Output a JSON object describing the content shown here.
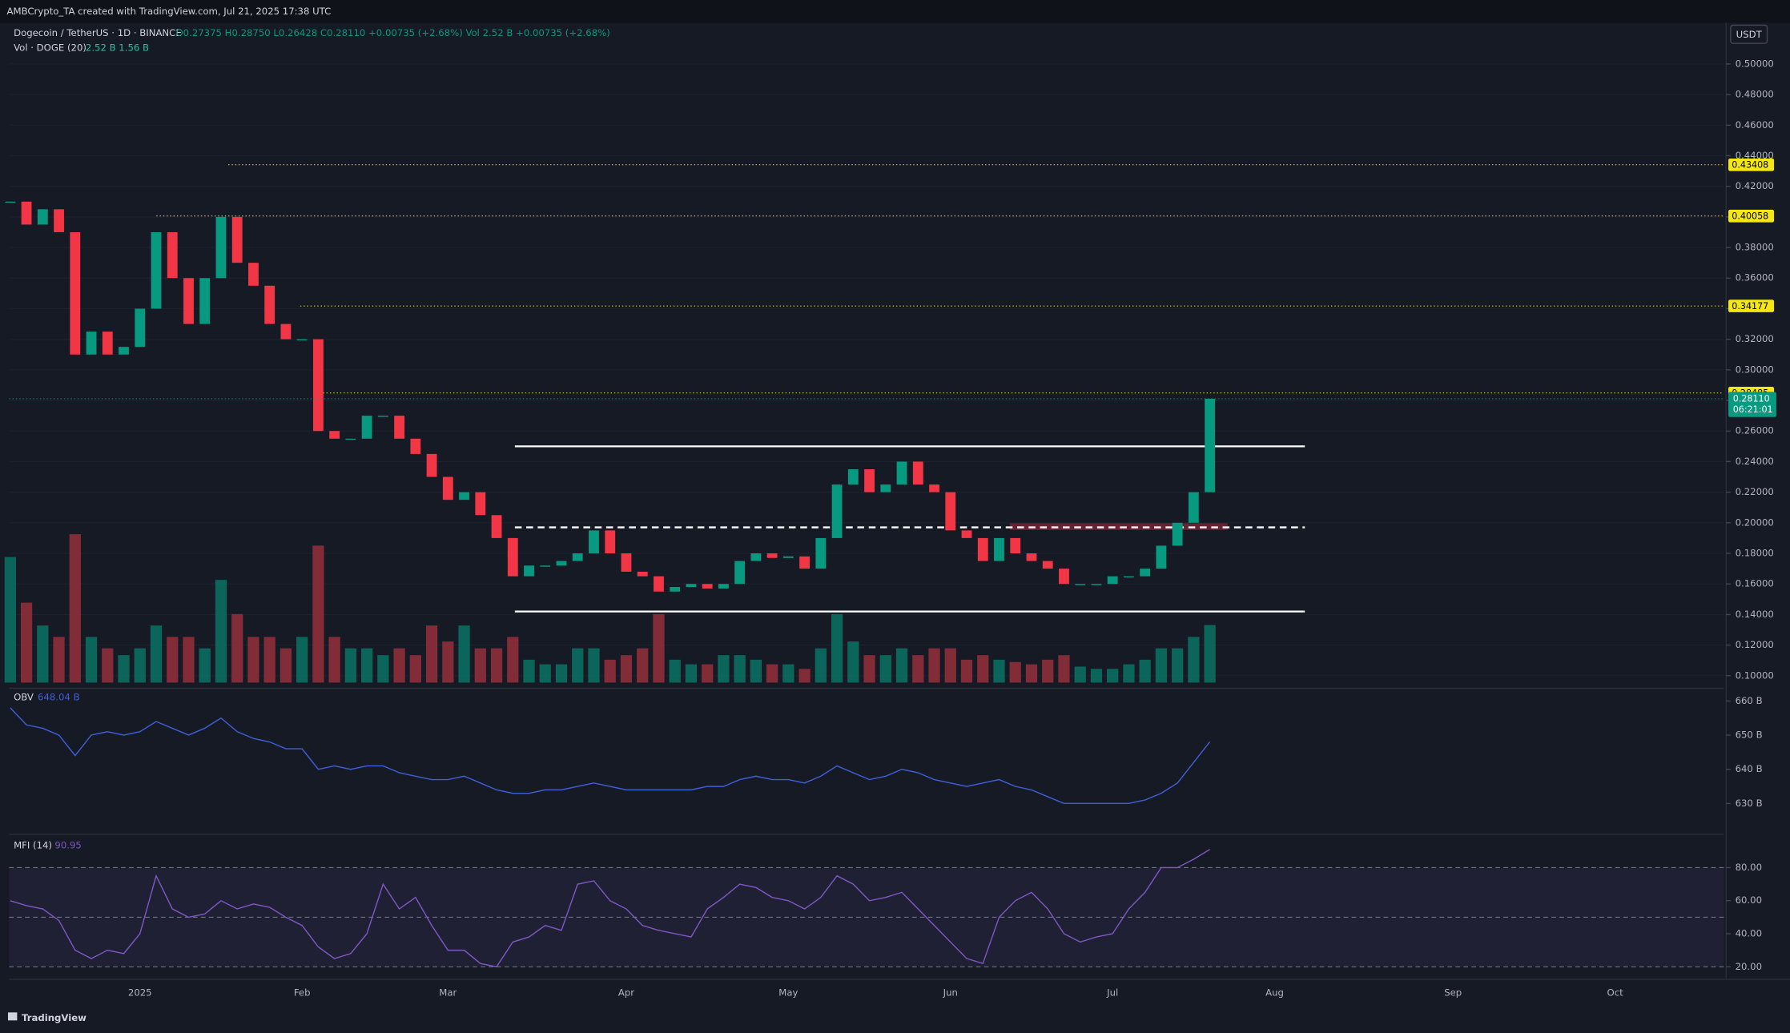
{
  "header": {
    "credit": "AMBCrypto_TA created with TradingView.com, Jul 21, 2025 17:38 UTC",
    "ohlc": "O0.27375 H0.28750 L0.26428 C0.28110 +0.00735 (+2.68%) Vol 2.52 B +0.00735 (+2.68%)",
    "volume_values": "2.52 B  1.56 B",
    "currency": "USDT",
    "logo": "TradingView"
  },
  "chart_data": [
    {
      "type": "candlestick",
      "categories": [
        null,
        null,
        null,
        null,
        null,
        null,
        null,
        null,
        "2025",
        null,
        null,
        null,
        null,
        null,
        null,
        null,
        null,
        null,
        "Feb",
        null,
        null,
        null,
        null,
        null,
        null,
        null,
        null,
        "Mar",
        null,
        null,
        null,
        null,
        null,
        null,
        null,
        null,
        null,
        null,
        "Apr",
        null,
        null,
        null,
        null,
        null,
        null,
        null,
        null,
        null,
        "May",
        null,
        null,
        null,
        null,
        null,
        null,
        null,
        null,
        null,
        "Jun",
        null,
        null,
        null,
        null,
        null,
        null,
        null,
        null,
        null,
        "Jul",
        null,
        null,
        null,
        null,
        null,
        null,
        null,
        null,
        null,
        "Aug",
        null,
        null,
        null,
        null,
        null,
        null,
        null,
        null,
        null,
        null,
        "Sep",
        null,
        null,
        null,
        null,
        null,
        null,
        null,
        null,
        null,
        "Oct",
        null,
        null,
        null,
        null,
        null,
        null
      ],
      "series": [
        {
          "name": "Dogecoin / TetherUS · 1D · BINANCE",
          "up_color": "#089981",
          "down_color": "#f23645",
          "values": [
            0.41,
            0.395,
            0.405,
            0.39,
            0.31,
            0.325,
            0.31,
            0.315,
            0.34,
            0.39,
            0.36,
            0.33,
            0.36,
            0.4,
            0.37,
            0.355,
            0.33,
            0.32,
            0.32,
            0.26,
            0.255,
            0.255,
            0.27,
            0.27,
            0.255,
            0.245,
            0.23,
            0.215,
            0.22,
            0.205,
            0.19,
            0.165,
            0.172,
            0.172,
            0.175,
            0.18,
            0.195,
            0.18,
            0.168,
            0.165,
            0.155,
            0.158,
            0.16,
            0.157,
            0.16,
            0.175,
            0.18,
            0.177,
            0.178,
            0.17,
            0.19,
            0.225,
            0.235,
            0.22,
            0.225,
            0.24,
            0.225,
            0.22,
            0.195,
            0.19,
            0.175,
            0.19,
            0.18,
            0.175,
            0.17,
            0.16,
            0.16,
            0.16,
            0.165,
            0.165,
            0.17,
            0.185,
            0.2,
            0.22,
            0.2811,
            null,
            null,
            null,
            null,
            null,
            null,
            null,
            null,
            null,
            null,
            null,
            null,
            null,
            null,
            null,
            null,
            null,
            null,
            null,
            null,
            null,
            null,
            null,
            null,
            null,
            null,
            null,
            null,
            null,
            null,
            null
          ]
        },
        {
          "name": "Vol · DOGE (20)",
          "up_color": "#0b6e60",
          "down_color": "#8e2f3a",
          "values": [
            5.5,
            3.5,
            2.5,
            2,
            6.5,
            2,
            1.5,
            1.2,
            1.5,
            2.5,
            2,
            2,
            1.5,
            4.5,
            3,
            2,
            2,
            1.5,
            2,
            6,
            2,
            1.5,
            1.5,
            1.2,
            1.5,
            1.2,
            2.5,
            1.8,
            2.5,
            1.5,
            1.5,
            2,
            1,
            0.8,
            0.8,
            1.5,
            1.5,
            1,
            1.2,
            1.5,
            3,
            1,
            0.8,
            0.8,
            1.2,
            1.2,
            1,
            0.8,
            0.8,
            0.6,
            1.5,
            3,
            1.8,
            1.2,
            1.2,
            1.5,
            1.2,
            1.5,
            1.5,
            1,
            1.2,
            1,
            0.9,
            0.8,
            1,
            1.2,
            0.7,
            0.6,
            0.6,
            0.8,
            1,
            1.5,
            1.5,
            2,
            2.52,
            null,
            null,
            null,
            null,
            null,
            null,
            null,
            null,
            null,
            null,
            null,
            null,
            null,
            null,
            null,
            null,
            null,
            null,
            null,
            null,
            null,
            null,
            null,
            null,
            null,
            null,
            null,
            null,
            null,
            null,
            null
          ]
        }
      ],
      "ylim": [
        0.0955,
        0.5269
      ],
      "yticks": [
        {
          "value": 0.1,
          "label": "0.10000"
        },
        {
          "value": 0.12,
          "label": "0.12000"
        },
        {
          "value": 0.14,
          "label": "0.14000"
        },
        {
          "value": 0.16,
          "label": "0.16000"
        },
        {
          "value": 0.18,
          "label": "0.18000"
        },
        {
          "value": 0.2,
          "label": "0.20000"
        },
        {
          "value": 0.22,
          "label": "0.22000"
        },
        {
          "value": 0.24,
          "label": "0.24000"
        },
        {
          "value": 0.26,
          "label": "0.26000"
        },
        {
          "value": 0.28,
          "label": "0.28000"
        },
        {
          "value": 0.3,
          "label": "0.30000"
        },
        {
          "value": 0.32,
          "label": "0.32000"
        },
        {
          "value": 0.34,
          "label": "0.34000"
        },
        {
          "value": 0.36,
          "label": "0.36000"
        },
        {
          "value": 0.38,
          "label": "0.38000"
        },
        {
          "value": 0.4,
          "label": "0.40000"
        },
        {
          "value": 0.42,
          "label": "0.42000"
        },
        {
          "value": 0.44,
          "label": "0.44000"
        },
        {
          "value": 0.46,
          "label": "0.46000"
        },
        {
          "value": 0.48,
          "label": "0.48000"
        },
        {
          "value": 0.5,
          "label": "0.50000"
        }
      ],
      "grid": true,
      "levels": [
        {
          "value": 0.43408,
          "label": "0.43408"
        },
        {
          "value": 0.40058,
          "label": "0.40058"
        },
        {
          "value": 0.34177,
          "label": "0.34177"
        },
        {
          "value": 0.28485,
          "label": "0.28485"
        }
      ],
      "level_color": "#f5e616",
      "range_lines": [
        {
          "value": 0.25,
          "style": "solid"
        },
        {
          "value": 0.197,
          "style": "dashed"
        },
        {
          "value": 0.142,
          "style": "solid"
        }
      ],
      "zone": [
        0.1955,
        0.1995
      ],
      "last_price": {
        "value": 0.2811,
        "label": "0.28110"
      },
      "countdown": "06:21:01"
    },
    {
      "type": "line",
      "name": "OBV",
      "value_label": "648.04 B",
      "color": "#3f5fd8",
      "values": [
        658,
        653,
        652,
        650,
        644,
        650,
        651,
        650,
        651,
        654,
        652,
        650,
        652,
        655,
        651,
        649,
        648,
        646,
        646,
        640,
        641,
        640,
        641,
        641,
        639,
        638,
        637,
        637,
        638,
        636,
        634,
        633,
        633,
        634,
        634,
        635,
        636,
        635,
        634,
        634,
        634,
        634,
        634,
        635,
        635,
        637,
        638,
        637,
        637,
        636,
        638,
        641,
        639,
        637,
        638,
        640,
        639,
        637,
        636,
        635,
        636,
        637,
        635,
        634,
        632,
        630,
        630,
        630,
        630,
        630,
        631,
        633,
        636,
        642,
        648.04,
        null,
        null,
        null,
        null,
        null,
        null,
        null,
        null,
        null,
        null,
        null,
        null,
        null,
        null,
        null,
        null,
        null,
        null,
        null,
        null,
        null,
        null,
        null,
        null,
        null,
        null,
        null,
        null,
        null,
        null,
        null
      ],
      "ylim": [
        621.3,
        662.7
      ],
      "yticks": [
        {
          "value": 630,
          "label": "630 B"
        },
        {
          "value": 640,
          "label": "640 B"
        },
        {
          "value": 650,
          "label": "650 B"
        },
        {
          "value": 660,
          "label": "660 B"
        }
      ]
    },
    {
      "type": "line",
      "name": "MFI (14)",
      "value_label": "90.95",
      "color": "#7e57c2",
      "values": [
        60,
        57,
        55,
        48,
        30,
        25,
        30,
        28,
        40,
        75,
        55,
        50,
        52,
        60,
        55,
        58,
        56,
        50,
        45,
        32,
        25,
        28,
        40,
        70,
        55,
        62,
        45,
        30,
        30,
        22,
        20,
        35,
        38,
        45,
        42,
        70,
        72,
        60,
        55,
        45,
        42,
        40,
        38,
        55,
        62,
        70,
        68,
        62,
        60,
        55,
        62,
        75,
        70,
        60,
        62,
        65,
        55,
        45,
        35,
        25,
        22,
        50,
        60,
        65,
        55,
        40,
        35,
        38,
        40,
        55,
        65,
        80,
        80,
        85,
        90.95,
        null,
        null,
        null,
        null,
        null,
        null,
        null,
        null,
        null,
        null,
        null,
        null,
        null,
        null,
        null,
        null,
        null,
        null,
        null,
        null,
        null,
        null,
        null,
        null,
        null,
        null,
        null,
        null,
        null,
        null,
        null
      ],
      "ylim": [
        14.5,
        97.3
      ],
      "yticks": [
        {
          "value": 20,
          "label": "20.00"
        },
        {
          "value": 40,
          "label": "40.00"
        },
        {
          "value": 60,
          "label": "60.00"
        },
        {
          "value": 80,
          "label": "80.00"
        }
      ],
      "hlines": [
        20,
        50,
        80
      ]
    }
  ]
}
